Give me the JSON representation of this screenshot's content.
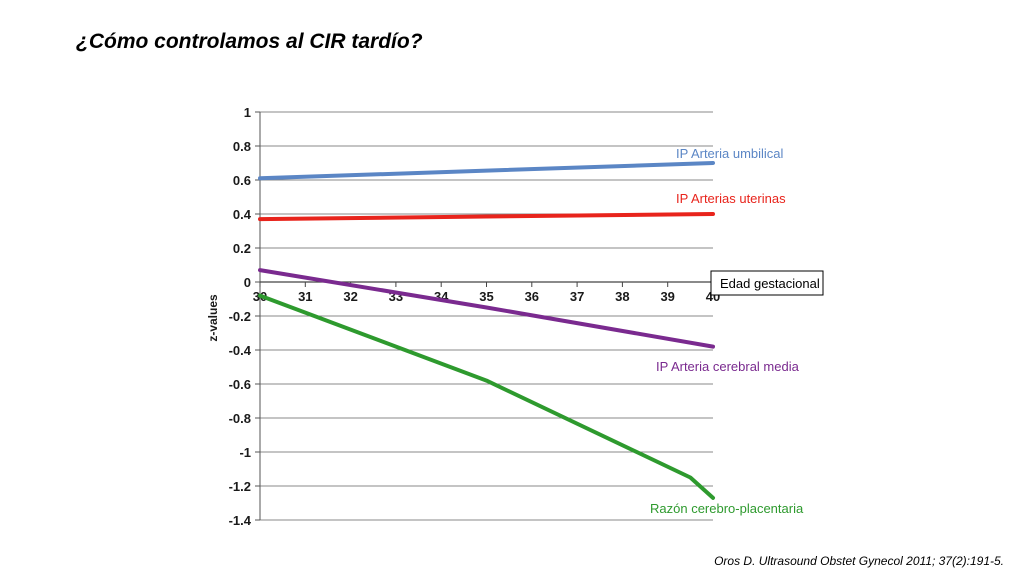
{
  "slide": {
    "title": "¿Cómo controlamos al CIR tardío?",
    "citation": "Oros D. Ultrasound Obstet Gynecol 2011; 37(2):191-5."
  },
  "chart_data": {
    "type": "line",
    "xlabel": "Edad gestacional",
    "ylabel": "z-values",
    "xlim": [
      30,
      40
    ],
    "ylim": [
      -1.4,
      1
    ],
    "x_ticks": [
      "30",
      "31",
      "32",
      "33",
      "34",
      "35",
      "36",
      "37",
      "38",
      "39",
      "40"
    ],
    "y_ticks": [
      "1",
      "0.8",
      "0.6",
      "0.4",
      "0.2",
      "0",
      "-0.2",
      "-0.4",
      "-0.6",
      "-0.8",
      "-1",
      "-1.2",
      "-1.4"
    ],
    "grid": true,
    "series": [
      {
        "name": "IP Arteria umbilical",
        "color": "#5b86c5",
        "x": [
          30,
          35,
          40
        ],
        "y": [
          0.61,
          0.655,
          0.7
        ]
      },
      {
        "name": "IP Arterias uterinas",
        "color": "#e8241c",
        "x": [
          30,
          35,
          40
        ],
        "y": [
          0.37,
          0.385,
          0.4
        ]
      },
      {
        "name": "IP Arteria cerebral media",
        "color": "#7a2a8f",
        "x": [
          30,
          35,
          40
        ],
        "y": [
          0.07,
          -0.15,
          -0.38
        ]
      },
      {
        "name": "Razón cerebro-placentaria",
        "color": "#2e9a2e",
        "x": [
          30,
          35,
          39.5,
          40
        ],
        "y": [
          -0.08,
          -0.58,
          -1.15,
          -1.27
        ]
      }
    ]
  }
}
